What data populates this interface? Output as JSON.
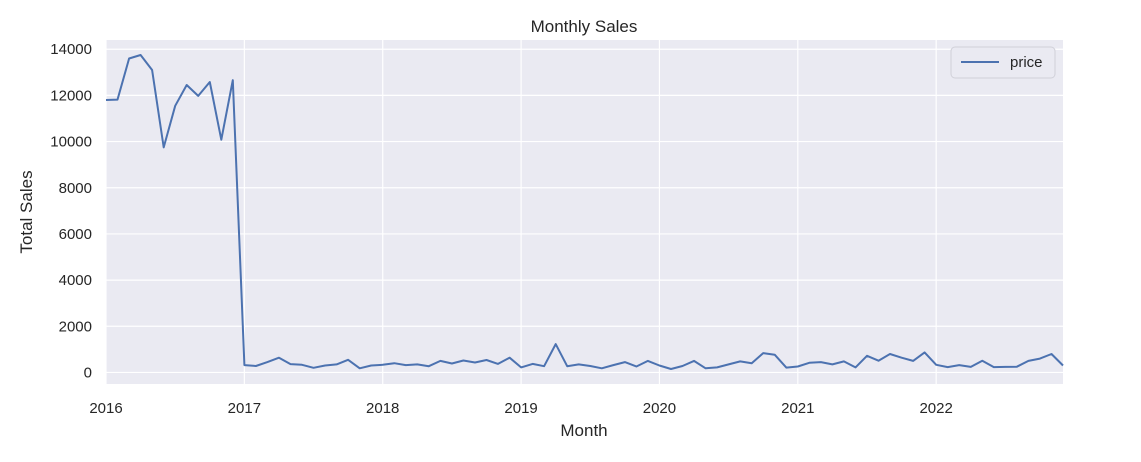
{
  "chart_data": {
    "type": "line",
    "title": "Monthly Sales",
    "xlabel": "Month",
    "ylabel": "Total Sales",
    "x_ticks": [
      "2016",
      "2017",
      "2018",
      "2019",
      "2020",
      "2021",
      "2022"
    ],
    "y_ticks": [
      0,
      2000,
      4000,
      6000,
      8000,
      10000,
      12000,
      14000
    ],
    "ylim": [
      -500,
      14400
    ],
    "xlim": [
      "2016-01",
      "2022-12"
    ],
    "grid": true,
    "legend_position": "top-right",
    "colors": {
      "background": "#eaeaf2",
      "grid": "#ffffff",
      "line": "#4c72b0"
    },
    "series": [
      {
        "name": "price",
        "x": [
          "2016-01",
          "2016-02",
          "2016-03",
          "2016-04",
          "2016-05",
          "2016-06",
          "2016-07",
          "2016-08",
          "2016-09",
          "2016-10",
          "2016-11",
          "2016-12",
          "2017-01",
          "2017-02",
          "2017-03",
          "2017-04",
          "2017-05",
          "2017-06",
          "2017-07",
          "2017-08",
          "2017-09",
          "2017-10",
          "2017-11",
          "2017-12",
          "2018-01",
          "2018-02",
          "2018-03",
          "2018-04",
          "2018-05",
          "2018-06",
          "2018-07",
          "2018-08",
          "2018-09",
          "2018-10",
          "2018-11",
          "2018-12",
          "2019-01",
          "2019-02",
          "2019-03",
          "2019-04",
          "2019-05",
          "2019-06",
          "2019-07",
          "2019-08",
          "2019-09",
          "2019-10",
          "2019-11",
          "2019-12",
          "2020-01",
          "2020-02",
          "2020-03",
          "2020-04",
          "2020-05",
          "2020-06",
          "2020-07",
          "2020-08",
          "2020-09",
          "2020-10",
          "2020-11",
          "2020-12",
          "2021-01",
          "2021-02",
          "2021-03",
          "2021-04",
          "2021-05",
          "2021-06",
          "2021-07",
          "2021-08",
          "2021-09",
          "2021-10",
          "2021-11",
          "2021-12",
          "2022-01",
          "2022-02",
          "2022-03",
          "2022-04",
          "2022-05",
          "2022-06",
          "2022-07",
          "2022-08",
          "2022-09",
          "2022-10",
          "2022-11",
          "2022-12"
        ],
        "values": [
          11800,
          11820,
          13600,
          13750,
          13100,
          9750,
          11550,
          12450,
          11980,
          12580,
          10080,
          12660,
          320,
          280,
          450,
          640,
          360,
          330,
          200,
          300,
          350,
          550,
          180,
          300,
          330,
          400,
          320,
          350,
          270,
          500,
          390,
          520,
          430,
          540,
          370,
          640,
          220,
          370,
          270,
          1230,
          270,
          350,
          280,
          180,
          320,
          450,
          260,
          500,
          300,
          150,
          280,
          500,
          180,
          220,
          350,
          480,
          400,
          840,
          770,
          210,
          260,
          420,
          450,
          350,
          480,
          220,
          720,
          510,
          800,
          640,
          500,
          870,
          330,
          230,
          320,
          240,
          510,
          230,
          240,
          250,
          500,
          600,
          800,
          300
        ]
      }
    ]
  }
}
